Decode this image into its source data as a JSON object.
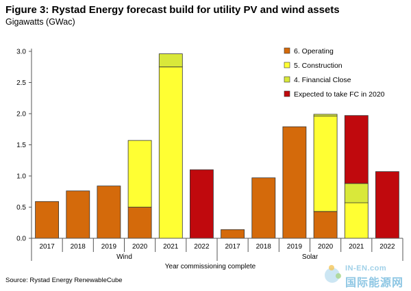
{
  "header": {
    "title": "Figure 3: Rystad Energy forecast build for utility PV and wind assets",
    "subtitle": "Gigawatts (GWac)"
  },
  "footer": {
    "source": "Source: Rystad Energy RenewableCube"
  },
  "watermark": {
    "brand_latin": "IN-EN.com",
    "brand_chinese": "国际能源网"
  },
  "chart_data": {
    "type": "bar",
    "stacked": true,
    "title": "Figure 3: Rystad Energy forecast build for utility PV and wind assets",
    "ylabel": "Gigawatts (GWac)",
    "xlabel": "Year commissioning complete",
    "ylim": [
      0,
      3.0
    ],
    "yticks": [
      "0.0",
      "0.5",
      "1.0",
      "1.5",
      "2.0",
      "2.5",
      "3.0"
    ],
    "grid": false,
    "legend_position": "top-right",
    "groups": [
      {
        "name": "Wind",
        "categories": [
          "2017",
          "2018",
          "2019",
          "2020",
          "2021",
          "2022"
        ]
      },
      {
        "name": "Solar",
        "categories": [
          "2017",
          "2018",
          "2019",
          "2020",
          "2021",
          "2022"
        ]
      }
    ],
    "series": [
      {
        "name": "6. Operating",
        "color": "#d46a0b",
        "values": [
          0.59,
          0.76,
          0.84,
          0.5,
          0.0,
          0.0,
          0.14,
          0.97,
          1.79,
          0.43,
          0.0,
          0.0
        ]
      },
      {
        "name": "5. Construction",
        "color": "#ffff33",
        "values": [
          0.0,
          0.0,
          0.0,
          1.07,
          2.75,
          0.0,
          0.0,
          0.0,
          0.0,
          1.53,
          0.57,
          0.0
        ]
      },
      {
        "name": "4. Financial Close",
        "color": "#d9e83a",
        "values": [
          0.0,
          0.0,
          0.0,
          0.0,
          0.21,
          0.0,
          0.0,
          0.0,
          0.0,
          0.03,
          0.31,
          0.0
        ]
      },
      {
        "name": "Expected to take FC in 2020",
        "color": "#c0090d",
        "values": [
          0.0,
          0.0,
          0.0,
          0.0,
          0.0,
          1.1,
          0.0,
          0.0,
          0.0,
          0.0,
          1.09,
          1.07
        ]
      }
    ]
  }
}
